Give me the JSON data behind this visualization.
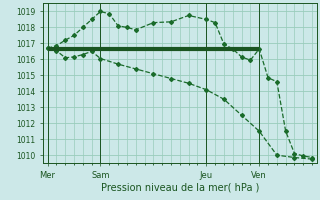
{
  "bg_color": "#cce8e8",
  "grid_color": "#99ccbb",
  "line_color": "#1a6b2a",
  "thick_line_color": "#1a5520",
  "ylabel_min": 1010,
  "ylabel_max": 1019,
  "xlabel": "Pression niveau de la mer( hPa )",
  "x_tick_positions": [
    0,
    6,
    18,
    24
  ],
  "x_tick_labels": [
    "Mer",
    "Sam",
    "Jeu",
    "Ven"
  ],
  "x_vline_positions": [
    0,
    6,
    18,
    24
  ],
  "x_max": 30,
  "line1_x": [
    0,
    1,
    2,
    3,
    4,
    5,
    6,
    7,
    8,
    9,
    10,
    12,
    14,
    16,
    18,
    19,
    20,
    21,
    22,
    23,
    24,
    25,
    26,
    27,
    28,
    29,
    30
  ],
  "line1_y": [
    1016.7,
    1016.85,
    1017.2,
    1017.5,
    1018.0,
    1018.5,
    1019.0,
    1018.85,
    1018.1,
    1018.0,
    1017.85,
    1018.3,
    1018.35,
    1018.75,
    1018.5,
    1018.3,
    1016.95,
    1016.65,
    1016.15,
    1015.95,
    1016.65,
    1014.85,
    1014.6,
    1011.5,
    1010.1,
    1009.95,
    1009.85
  ],
  "line2_x": [
    0,
    1,
    2,
    3,
    4,
    5,
    6,
    8,
    10,
    12,
    14,
    16,
    18,
    20,
    22,
    24,
    26,
    28,
    30
  ],
  "line2_y": [
    1016.7,
    1016.55,
    1016.1,
    1016.15,
    1016.3,
    1016.5,
    1016.05,
    1015.7,
    1015.4,
    1015.1,
    1014.8,
    1014.5,
    1014.1,
    1013.5,
    1012.5,
    1011.5,
    1010.0,
    1009.85,
    1009.75
  ],
  "hline_y": 1016.65,
  "hline_x_start": 0,
  "hline_x_end": 24,
  "xlim_min": -0.5,
  "xlim_max": 30.5,
  "ylim_min": 1009.5,
  "ylim_max": 1019.5
}
